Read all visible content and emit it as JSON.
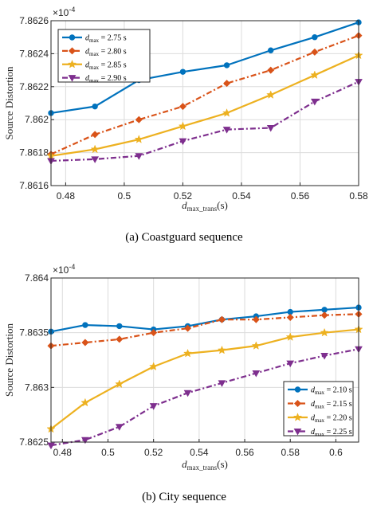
{
  "chart_data": [
    {
      "type": "line",
      "caption": "(a) Coastguard sequence",
      "ylabel": "Source Distortion",
      "xlabel": "d_max_trans (s)",
      "xlabel_main": "d",
      "xlabel_sub": "max_trans",
      "xlabel_unit": "(s)",
      "exponent_label": "×10",
      "exponent_power": "-4",
      "xlim": [
        0.475,
        0.58
      ],
      "ylim": [
        7.8616,
        7.8626
      ],
      "xticks": [
        0.48,
        0.5,
        0.52,
        0.54,
        0.56,
        0.58
      ],
      "xtick_labels": [
        "0.48",
        "0.5",
        "0.52",
        "0.54",
        "0.56",
        "0.58"
      ],
      "yticks": [
        7.8616,
        7.8618,
        7.862,
        7.8622,
        7.8624,
        7.8626
      ],
      "ytick_labels": [
        "7.8616",
        "7.8618",
        "7.862",
        "7.8622",
        "7.8624",
        "7.8626"
      ],
      "grid": true,
      "legend_position": "top-left",
      "x": [
        0.475,
        0.49,
        0.505,
        0.52,
        0.535,
        0.55,
        0.565,
        0.58
      ],
      "series": [
        {
          "name": "d_max = 2.75 s",
          "legend_main": "d",
          "legend_sub": "max",
          "legend_val": " = 2.75 s",
          "color": "#0072BD",
          "marker": "circle",
          "dash": "solid",
          "values": [
            7.86204,
            7.86208,
            7.86224,
            7.86229,
            7.86233,
            7.86242,
            7.8625,
            7.86259
          ]
        },
        {
          "name": "d_max = 2.80 s",
          "legend_main": "d",
          "legend_sub": "max",
          "legend_val": " = 2.80 s",
          "color": "#D95319",
          "marker": "diamond",
          "dash": "dashdot",
          "values": [
            7.86179,
            7.86191,
            7.862,
            7.86208,
            7.86222,
            7.8623,
            7.86241,
            7.86251
          ]
        },
        {
          "name": "d_max = 2.85 s",
          "legend_main": "d",
          "legend_sub": "max",
          "legend_val": " = 2.85 s",
          "color": "#EDB120",
          "marker": "star",
          "dash": "solid",
          "values": [
            7.86178,
            7.86182,
            7.86188,
            7.86196,
            7.86204,
            7.86215,
            7.86227,
            7.86239
          ]
        },
        {
          "name": "d_max = 2.90 s",
          "legend_main": "d",
          "legend_sub": "max",
          "legend_val": " = 2.90 s",
          "color": "#7E2F8E",
          "marker": "triangle-down",
          "dash": "dashdot",
          "values": [
            7.86175,
            7.86176,
            7.86178,
            7.86187,
            7.86194,
            7.86195,
            7.86211,
            7.86223
          ]
        }
      ]
    },
    {
      "type": "line",
      "caption": "(b) City sequence",
      "ylabel": "Source Distortion",
      "xlabel": "d_max_trans (s)",
      "xlabel_main": "d",
      "xlabel_sub": "max_trans",
      "xlabel_unit": "(s)",
      "exponent_label": "×10",
      "exponent_power": "-4",
      "xlim": [
        0.475,
        0.61
      ],
      "ylim": [
        7.8625,
        7.864
      ],
      "xticks": [
        0.48,
        0.5,
        0.52,
        0.54,
        0.56,
        0.58,
        0.6
      ],
      "xtick_labels": [
        "0.48",
        "0.5",
        "0.52",
        "0.54",
        "0.56",
        "0.58",
        "0.6"
      ],
      "yticks": [
        7.8625,
        7.863,
        7.8635,
        7.864
      ],
      "ytick_labels": [
        "7.8625",
        "7.863",
        "7.8635",
        "7.864"
      ],
      "grid": true,
      "legend_position": "bottom-right",
      "x": [
        0.475,
        0.49,
        0.505,
        0.52,
        0.535,
        0.55,
        0.565,
        0.58,
        0.595,
        0.61
      ],
      "series": [
        {
          "name": "d_max = 2.10 s",
          "legend_main": "d",
          "legend_sub": "max",
          "legend_val": " = 2.10 s",
          "color": "#0072BD",
          "marker": "circle",
          "dash": "solid",
          "values": [
            7.86351,
            7.86357,
            7.86356,
            7.86353,
            7.86356,
            7.86362,
            7.86365,
            7.86369,
            7.86371,
            7.86373
          ]
        },
        {
          "name": "d_max = 2.15 s",
          "legend_main": "d",
          "legend_sub": "max",
          "legend_val": " = 2.15 s",
          "color": "#D95319",
          "marker": "diamond",
          "dash": "dashdot",
          "values": [
            7.86338,
            7.86341,
            7.86344,
            7.8635,
            7.86354,
            7.86362,
            7.86362,
            7.86364,
            7.86366,
            7.86367
          ]
        },
        {
          "name": "d_max = 2.20 s",
          "legend_main": "d",
          "legend_sub": "max",
          "legend_val": " = 2.20 s",
          "color": "#EDB120",
          "marker": "star",
          "dash": "solid",
          "values": [
            7.86262,
            7.86286,
            7.86303,
            7.86319,
            7.86331,
            7.86334,
            7.86338,
            7.86346,
            7.8635,
            7.86353
          ]
        },
        {
          "name": "d_max = 2.25 s",
          "legend_main": "d",
          "legend_sub": "max",
          "legend_val": " = 2.25 s",
          "color": "#7E2F8E",
          "marker": "triangle-down",
          "dash": "dashdot",
          "values": [
            7.86247,
            7.86252,
            7.86264,
            7.86283,
            7.86295,
            7.86304,
            7.86313,
            7.86322,
            7.86329,
            7.86335
          ]
        }
      ]
    }
  ]
}
